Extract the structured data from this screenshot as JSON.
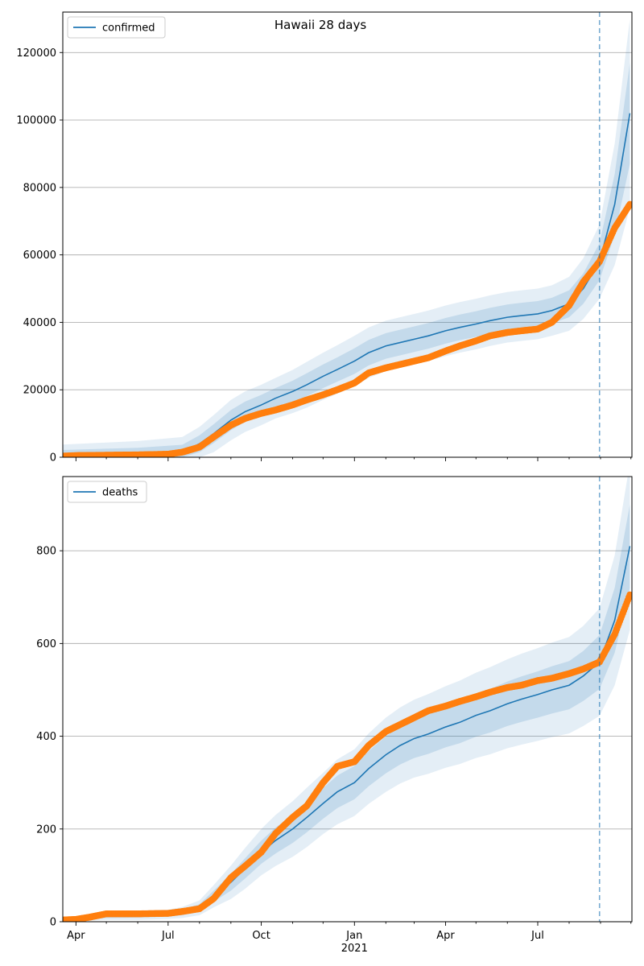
{
  "chart_data": [
    {
      "type": "line",
      "title": "Hawaii 28 days",
      "xlabel": "",
      "ylabel": "",
      "ylim": [
        0,
        132000
      ],
      "yticks": [
        0,
        20000,
        40000,
        60000,
        80000,
        100000,
        120000
      ],
      "x_tick_labels": [],
      "grid": "horizontal",
      "legend": "top-left",
      "forecast_start": "2021-08-31",
      "series": [
        {
          "name": "confirmed",
          "role": "model",
          "color": "#1f77b4",
          "dates": [
            "2020-03-01",
            "2020-06-01",
            "2020-07-15",
            "2020-08-01",
            "2020-08-15",
            "2020-09-01",
            "2020-09-15",
            "2020-10-01",
            "2020-10-15",
            "2020-11-01",
            "2020-11-15",
            "2020-12-01",
            "2020-12-15",
            "2021-01-01",
            "2021-01-15",
            "2021-02-01",
            "2021-02-15",
            "2021-03-01",
            "2021-03-15",
            "2021-04-01",
            "2021-04-15",
            "2021-05-01",
            "2021-05-15",
            "2021-06-01",
            "2021-06-15",
            "2021-07-01",
            "2021-07-15",
            "2021-08-01",
            "2021-08-15",
            "2021-08-31",
            "2021-09-15",
            "2021-09-30"
          ],
          "values": [
            500,
            800,
            1500,
            4000,
            7000,
            11000,
            13500,
            15500,
            17500,
            19500,
            21500,
            24000,
            26000,
            28500,
            31000,
            33000,
            34000,
            35000,
            36000,
            37500,
            38500,
            39500,
            40500,
            41500,
            42000,
            42500,
            43500,
            45500,
            50000,
            58000,
            75000,
            102000
          ],
          "band_inner": [
            1500,
            2000,
            2200,
            2500,
            2800,
            3000,
            3000,
            3000,
            3000,
            3200,
            3400,
            3500,
            3600,
            3800,
            3800,
            3800,
            3800,
            3800,
            3800,
            3800,
            3800,
            3800,
            3800,
            3800,
            3800,
            3800,
            3800,
            4000,
            4500,
            5500,
            9000,
            15000
          ],
          "band_outer": [
            3000,
            4000,
            4500,
            5000,
            5500,
            6000,
            6000,
            6000,
            6000,
            6400,
            6800,
            7000,
            7200,
            7500,
            7500,
            7500,
            7500,
            7500,
            7500,
            7500,
            7500,
            7500,
            7500,
            7500,
            7500,
            7500,
            7500,
            8000,
            9000,
            11000,
            18000,
            28000
          ]
        },
        {
          "name": "",
          "role": "observed",
          "color": "#ff7f0e",
          "dates": [
            "2020-03-01",
            "2020-04-01",
            "2020-05-01",
            "2020-06-01",
            "2020-07-01",
            "2020-07-15",
            "2020-08-01",
            "2020-08-15",
            "2020-09-01",
            "2020-09-15",
            "2020-10-01",
            "2020-10-15",
            "2020-11-01",
            "2020-11-15",
            "2020-12-01",
            "2020-12-15",
            "2021-01-01",
            "2021-01-15",
            "2021-02-01",
            "2021-02-15",
            "2021-03-01",
            "2021-03-15",
            "2021-04-01",
            "2021-04-15",
            "2021-05-01",
            "2021-05-15",
            "2021-06-01",
            "2021-06-15",
            "2021-07-01",
            "2021-07-15",
            "2021-08-01",
            "2021-08-15",
            "2021-08-31",
            "2021-09-15",
            "2021-09-30"
          ],
          "values": [
            100,
            500,
            600,
            700,
            900,
            1500,
            3000,
            6000,
            9500,
            11500,
            13000,
            14000,
            15500,
            17000,
            18500,
            20000,
            22000,
            25000,
            26500,
            27500,
            28500,
            29500,
            31500,
            33000,
            34500,
            36000,
            37000,
            37500,
            38000,
            40000,
            45000,
            52000,
            58000,
            68000,
            75000
          ]
        }
      ]
    },
    {
      "type": "line",
      "title": "",
      "xlabel": "",
      "ylabel": "",
      "ylim": [
        0,
        960
      ],
      "yticks": [
        0,
        200,
        400,
        600,
        800
      ],
      "x_tick_labels": [
        "Apr",
        "Jul",
        "Oct",
        "Jan",
        "Apr",
        "Jul"
      ],
      "x_tick_year": "2021",
      "grid": "horizontal",
      "legend": "top-left",
      "forecast_start": "2021-08-31",
      "series": [
        {
          "name": "deaths",
          "role": "model",
          "color": "#1f77b4",
          "dates": [
            "2020-03-01",
            "2020-04-01",
            "2020-05-01",
            "2020-06-01",
            "2020-07-01",
            "2020-07-15",
            "2020-08-01",
            "2020-08-15",
            "2020-09-01",
            "2020-09-15",
            "2020-10-01",
            "2020-10-15",
            "2020-11-01",
            "2020-11-15",
            "2020-12-01",
            "2020-12-15",
            "2021-01-01",
            "2021-01-15",
            "2021-02-01",
            "2021-02-15",
            "2021-03-01",
            "2021-03-15",
            "2021-04-01",
            "2021-04-15",
            "2021-05-01",
            "2021-05-15",
            "2021-06-01",
            "2021-06-15",
            "2021-07-01",
            "2021-07-15",
            "2021-08-01",
            "2021-08-15",
            "2021-08-31",
            "2021-09-15",
            "2021-09-30"
          ],
          "values": [
            2,
            6,
            12,
            14,
            16,
            20,
            30,
            55,
            85,
            115,
            150,
            175,
            200,
            225,
            255,
            280,
            300,
            330,
            360,
            380,
            395,
            405,
            420,
            430,
            445,
            455,
            470,
            480,
            490,
            500,
            510,
            530,
            560,
            650,
            810
          ],
          "band_inner": [
            2,
            3,
            4,
            5,
            5,
            6,
            8,
            12,
            18,
            22,
            25,
            28,
            30,
            32,
            33,
            35,
            36,
            38,
            40,
            41,
            42,
            43,
            44,
            45,
            46,
            47,
            48,
            49,
            50,
            51,
            52,
            54,
            58,
            70,
            90
          ],
          "band_outer": [
            4,
            6,
            8,
            10,
            10,
            12,
            16,
            24,
            36,
            44,
            50,
            55,
            60,
            64,
            66,
            70,
            72,
            76,
            80,
            82,
            84,
            86,
            88,
            90,
            92,
            94,
            96,
            98,
            100,
            102,
            104,
            108,
            116,
            140,
            180
          ]
        },
        {
          "name": "",
          "role": "observed",
          "color": "#ff7f0e",
          "dates": [
            "2020-03-01",
            "2020-04-01",
            "2020-04-15",
            "2020-05-01",
            "2020-06-01",
            "2020-07-01",
            "2020-07-15",
            "2020-08-01",
            "2020-08-15",
            "2020-09-01",
            "2020-09-15",
            "2020-10-01",
            "2020-10-15",
            "2020-11-01",
            "2020-11-15",
            "2020-12-01",
            "2020-12-15",
            "2021-01-01",
            "2021-01-15",
            "2021-02-01",
            "2021-02-15",
            "2021-03-01",
            "2021-03-15",
            "2021-04-01",
            "2021-04-15",
            "2021-05-01",
            "2021-05-15",
            "2021-06-01",
            "2021-06-15",
            "2021-07-01",
            "2021-07-15",
            "2021-08-01",
            "2021-08-15",
            "2021-08-31",
            "2021-09-15",
            "2021-09-30"
          ],
          "values": [
            2,
            5,
            10,
            17,
            17,
            18,
            22,
            28,
            50,
            95,
            120,
            150,
            190,
            225,
            250,
            300,
            335,
            345,
            380,
            410,
            425,
            440,
            455,
            465,
            475,
            485,
            495,
            505,
            510,
            520,
            525,
            535,
            545,
            560,
            620,
            705
          ]
        }
      ]
    }
  ]
}
